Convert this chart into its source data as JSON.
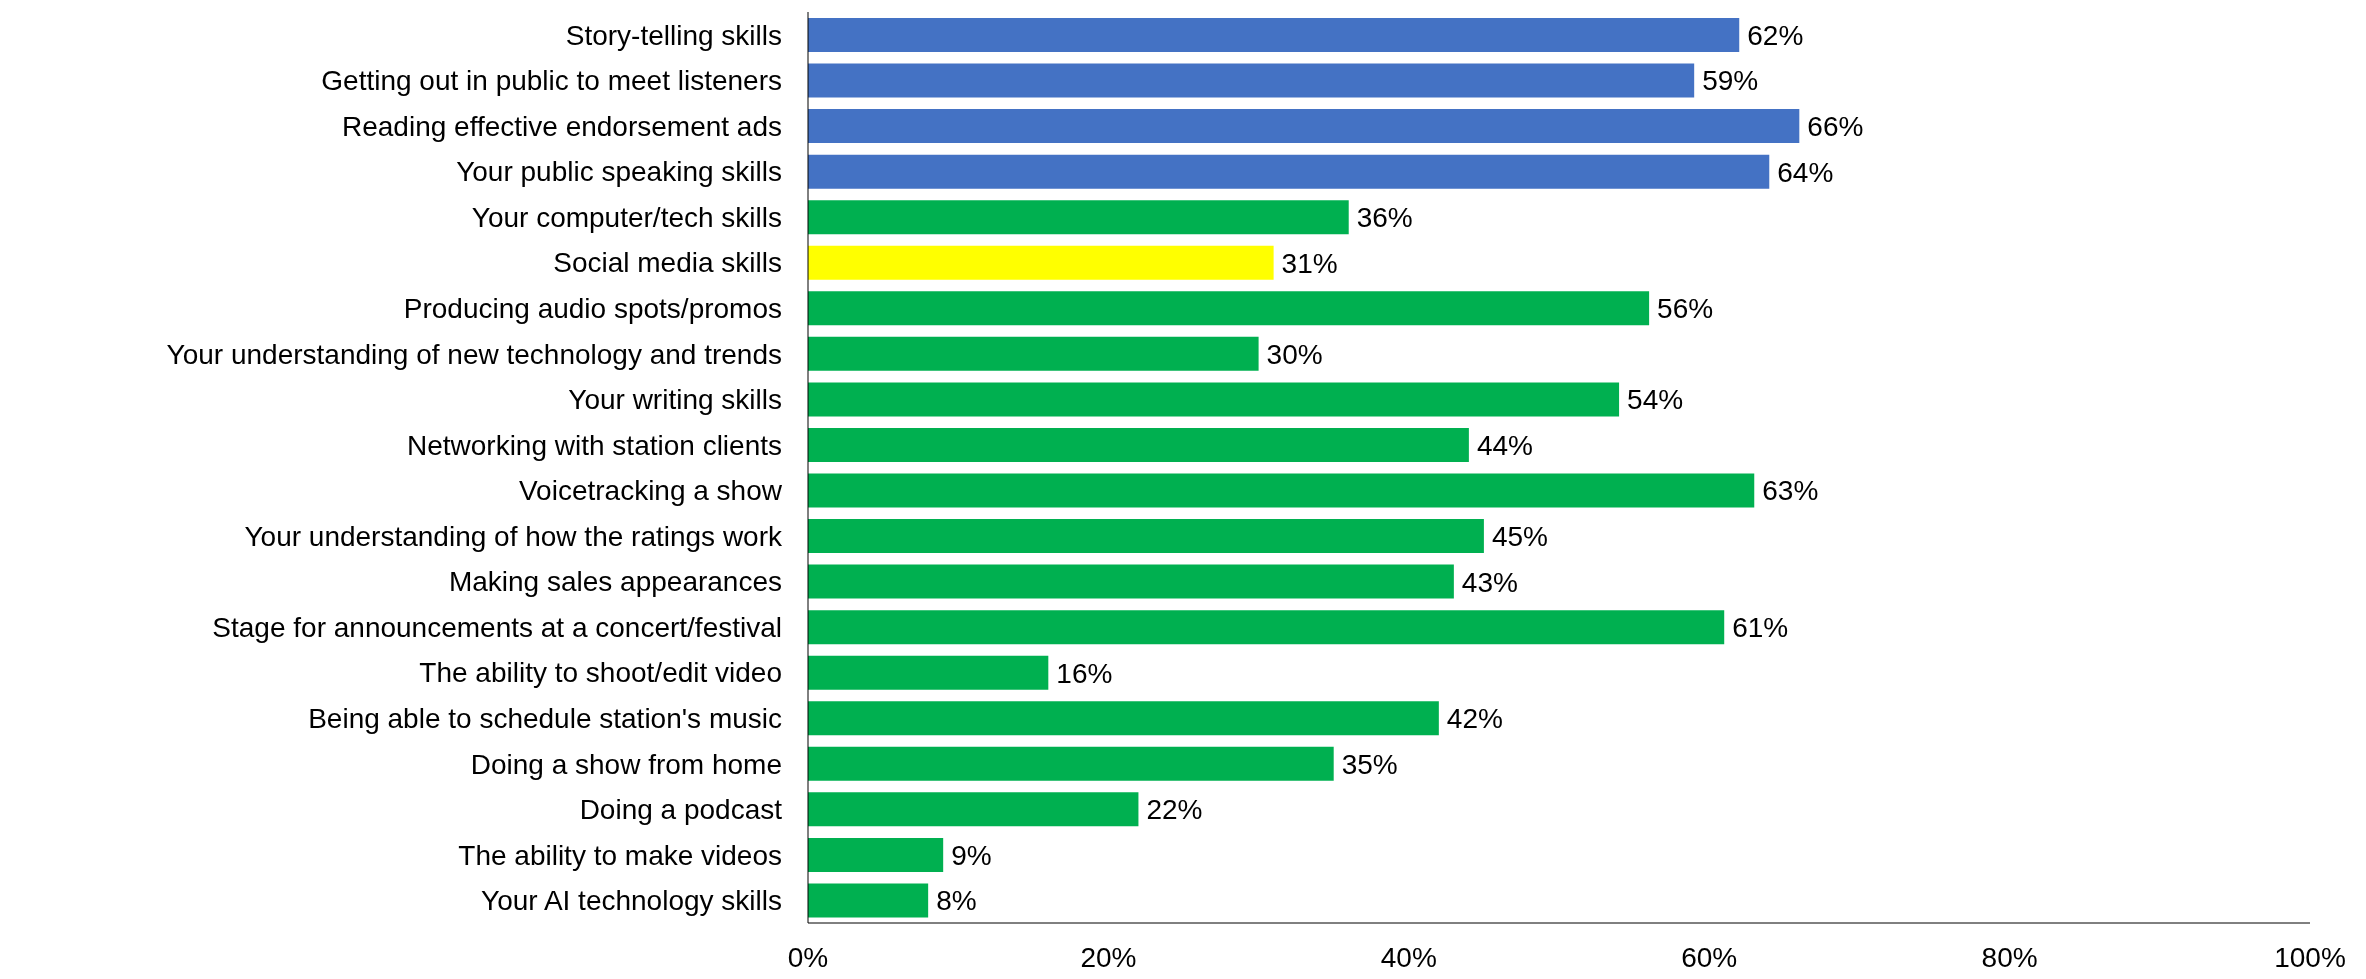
{
  "chart_data": {
    "type": "bar",
    "orientation": "horizontal",
    "categories": [
      "Story-telling skills",
      "Getting out in public to meet listeners",
      "Reading effective endorsement ads",
      "Your public speaking skills",
      "Your computer/tech skills",
      "Social media skills",
      "Producing audio spots/promos",
      "Your understanding of new technology and trends",
      "Your writing skills",
      "Networking with station clients",
      "Voicetracking a show",
      "Your understanding of how the ratings work",
      "Making sales appearances",
      "Stage for announcements at a concert/festival",
      "The ability to shoot/edit video",
      "Being able to schedule station's music",
      "Doing a show from home",
      "Doing a podcast",
      "The ability to make videos",
      "Your AI technology skills"
    ],
    "values": [
      62,
      59,
      66,
      64,
      36,
      31,
      56,
      30,
      54,
      44,
      63,
      45,
      43,
      61,
      16,
      42,
      35,
      22,
      9,
      8
    ],
    "value_labels": [
      "62%",
      "59%",
      "66%",
      "64%",
      "36%",
      "31%",
      "56%",
      "30%",
      "54%",
      "44%",
      "63%",
      "45%",
      "43%",
      "61%",
      "16%",
      "42%",
      "35%",
      "22%",
      "9%",
      "8%"
    ],
    "colors": [
      "#4472c4",
      "#4472c4",
      "#4472c4",
      "#4472c4",
      "#00b050",
      "#ffff00",
      "#00b050",
      "#00b050",
      "#00b050",
      "#00b050",
      "#00b050",
      "#00b050",
      "#00b050",
      "#00b050",
      "#00b050",
      "#00b050",
      "#00b050",
      "#00b050",
      "#00b050",
      "#00b050"
    ],
    "xlim": [
      0,
      100
    ],
    "xticks": [
      {
        "value": 0,
        "label": "0%"
      },
      {
        "value": 20,
        "label": "20%"
      },
      {
        "value": 40,
        "label": "40%"
      },
      {
        "value": 60,
        "label": "60%"
      },
      {
        "value": 80,
        "label": "80%"
      },
      {
        "value": 100,
        "label": "100%"
      }
    ]
  }
}
